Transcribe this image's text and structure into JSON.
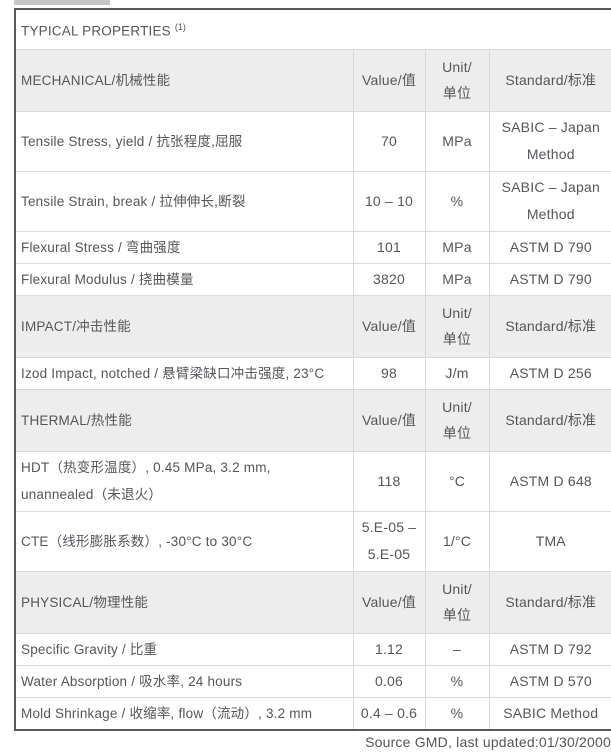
{
  "colors": {
    "text": "#54565a",
    "section_header_bg": "#ededed",
    "inner_border": "#d9d9d9",
    "outer_border": "#58595b",
    "tab_stub": "#c6c6c6"
  },
  "table": {
    "title": "TYPICAL PROPERTIES",
    "title_sup": "(1)",
    "sections": [
      {
        "label": "MECHANICAL/机械性能",
        "value_label": "Value/值",
        "unit_lines": [
          "Unit/",
          "单位"
        ],
        "standard_label": "Standard/标准",
        "rows": [
          {
            "property": "Tensile Stress, yield / 抗张程度,屈服",
            "value": "70",
            "unit": "MPa",
            "standard": "SABIC – Japan Method"
          },
          {
            "property": "Tensile Strain, break / 拉伸伸长,断裂",
            "value": "10 – 10",
            "unit": "%",
            "standard": "SABIC – Japan Method"
          },
          {
            "property": "Flexural Stress / 弯曲强度",
            "value": "101",
            "unit": "MPa",
            "standard": "ASTM D 790"
          },
          {
            "property": "Flexural Modulus / 挠曲模量",
            "value": "3820",
            "unit": "MPa",
            "standard": "ASTM D 790"
          }
        ]
      },
      {
        "label": "IMPACT/冲击性能",
        "value_label": "Value/值",
        "unit_lines": [
          "Unit/",
          "单位"
        ],
        "standard_label": "Standard/标准",
        "rows": [
          {
            "property": "Izod Impact, notched / 悬臂梁缺口冲击强度, 23°C",
            "value": "98",
            "unit": "J/m",
            "standard": "ASTM D 256"
          }
        ]
      },
      {
        "label": "THERMAL/热性能",
        "value_label": "Value/值",
        "unit_lines": [
          "Unit/",
          "单位"
        ],
        "standard_label": "Standard/标准",
        "rows": [
          {
            "property": "HDT（热变形温度）, 0.45 MPa, 3.2 mm, unannealed（未退火）",
            "value": "118",
            "unit": "°C",
            "standard": "ASTM D 648"
          },
          {
            "property": "CTE（线形膨胀系数）, -30°C to 30°C",
            "value": "5.E-05 – 5.E-05",
            "unit": "1/°C",
            "standard": "TMA"
          }
        ]
      },
      {
        "label": "PHYSICAL/物理性能",
        "value_label": "Value/值",
        "unit_lines": [
          "Unit/",
          "单位"
        ],
        "standard_label": "Standard/标准",
        "rows": [
          {
            "property": "Specific Gravity / 比重",
            "value": "1.12",
            "unit": "–",
            "standard": "ASTM D 792"
          },
          {
            "property": "Water Absorption / 吸水率, 24 hours",
            "value": "0.06",
            "unit": "%",
            "standard": "ASTM D 570"
          },
          {
            "property": "Mold Shrinkage / 收缩率, flow（流动）, 3.2 mm",
            "value": "0.4 – 0.6",
            "unit": "%",
            "standard": "SABIC Method"
          }
        ]
      }
    ]
  },
  "footer": {
    "text": "Source GMD, last updated:01/30/2000"
  }
}
